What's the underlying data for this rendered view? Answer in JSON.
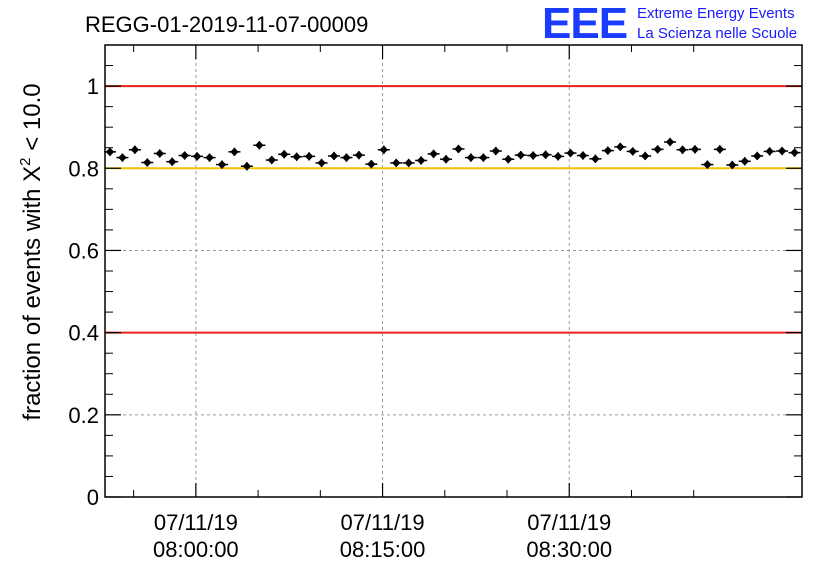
{
  "header": {
    "run_title": "REGG-01-2019-11-07-00009",
    "logo": {
      "letters": "EEE",
      "line1": "Extreme Energy Events",
      "line2": "La Scienza nelle Scuole"
    }
  },
  "chart_data": {
    "type": "scatter",
    "title": "REGG-01-2019-11-07-00009",
    "ylabel": "fraction of events with χ² < 10.0",
    "ylabel_parts": {
      "prefix": "fraction of events with X",
      "sup": "2",
      "suffix": " < 10.0"
    },
    "xlabel": "",
    "ylim": [
      0,
      1.1
    ],
    "xlim_minutes": [
      -7.3,
      48.7
    ],
    "yticks": [
      0,
      0.2,
      0.4,
      0.6,
      0.8,
      1
    ],
    "ytick_labels": [
      "0",
      "0.2",
      "0.4",
      "0.6",
      "0.8",
      "1"
    ],
    "xticks": [
      {
        "minutes": 0,
        "date": "07/11/19",
        "time": "08:00:00"
      },
      {
        "minutes": 15,
        "date": "07/11/19",
        "time": "08:15:00"
      },
      {
        "minutes": 30,
        "date": "07/11/19",
        "time": "08:30:00"
      }
    ],
    "grid": true,
    "reference_lines": [
      {
        "y": 1.0,
        "color": "#e8201a"
      },
      {
        "y": 0.8,
        "color": "#f2c200"
      },
      {
        "y": 0.4,
        "color": "#e8201a"
      }
    ],
    "marker_color": "#000000",
    "series": [
      {
        "x": [
          -6.9,
          -5.9,
          -4.9,
          -3.9,
          -2.9,
          -1.9,
          -0.9,
          0.1,
          1.1,
          2.1,
          3.1,
          4.1,
          5.1,
          6.1,
          7.1,
          8.1,
          9.1,
          10.1,
          11.1,
          12.1,
          13.1,
          14.1,
          15.1,
          16.1,
          17.1,
          18.1,
          19.1,
          20.1,
          21.1,
          22.1,
          23.1,
          24.1,
          25.1,
          26.1,
          27.1,
          28.1,
          29.1,
          30.1,
          31.1,
          32.1,
          33.1,
          34.1,
          35.1,
          36.1,
          37.1,
          38.1,
          39.1,
          40.1,
          41.1,
          42.1,
          43.1,
          44.1,
          45.1,
          46.1,
          47.1,
          48.1
        ],
        "y": [
          0.84,
          0.826,
          0.845,
          0.814,
          0.836,
          0.816,
          0.831,
          0.829,
          0.826,
          0.809,
          0.84,
          0.805,
          0.856,
          0.82,
          0.834,
          0.828,
          0.829,
          0.813,
          0.83,
          0.826,
          0.832,
          0.81,
          0.845,
          0.813,
          0.813,
          0.819,
          0.835,
          0.822,
          0.847,
          0.826,
          0.826,
          0.842,
          0.822,
          0.832,
          0.831,
          0.833,
          0.829,
          0.837,
          0.831,
          0.823,
          0.843,
          0.852,
          0.841,
          0.83,
          0.846,
          0.864,
          0.845,
          0.846,
          0.809,
          0.846,
          0.808,
          0.817,
          0.83,
          0.841,
          0.842,
          0.838
        ],
        "err": [
          0.01,
          0.01,
          0.01,
          0.01,
          0.01,
          0.01,
          0.01,
          0.01,
          0.01,
          0.01,
          0.01,
          0.01,
          0.01,
          0.01,
          0.01,
          0.01,
          0.01,
          0.01,
          0.01,
          0.01,
          0.01,
          0.01,
          0.01,
          0.01,
          0.01,
          0.01,
          0.01,
          0.01,
          0.01,
          0.01,
          0.01,
          0.01,
          0.01,
          0.01,
          0.01,
          0.01,
          0.01,
          0.01,
          0.01,
          0.01,
          0.01,
          0.01,
          0.01,
          0.01,
          0.01,
          0.01,
          0.01,
          0.01,
          0.01,
          0.01,
          0.01,
          0.01,
          0.01,
          0.01,
          0.01,
          0.01
        ]
      }
    ]
  }
}
